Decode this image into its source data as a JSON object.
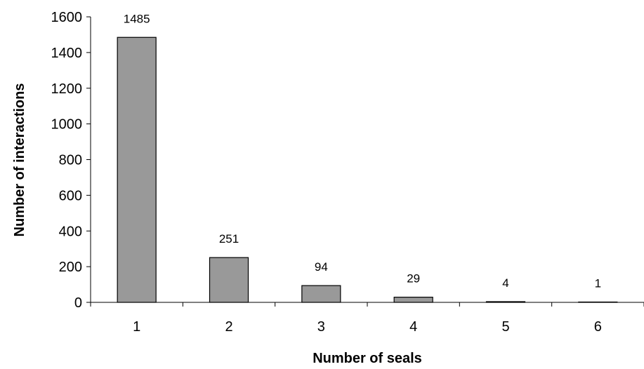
{
  "chart_data": {
    "type": "bar",
    "title": "",
    "xlabel": "Number of seals",
    "ylabel": "Number of interactions",
    "categories": [
      "1",
      "2",
      "3",
      "4",
      "5",
      "6"
    ],
    "values": [
      1485,
      251,
      94,
      29,
      4,
      1
    ],
    "data_labels": [
      "1485",
      "251",
      "94",
      "29",
      "4",
      "1"
    ],
    "ylim": [
      0,
      1600
    ],
    "yticks": [
      0,
      200,
      400,
      600,
      800,
      1000,
      1200,
      1400,
      1600
    ],
    "ytick_labels": [
      "0",
      "200",
      "400",
      "600",
      "800",
      "1000",
      "1200",
      "1400",
      "1600"
    ],
    "grid": false,
    "legend": "none",
    "bar_color": "#999999",
    "bar_edge_color": "#000000"
  }
}
